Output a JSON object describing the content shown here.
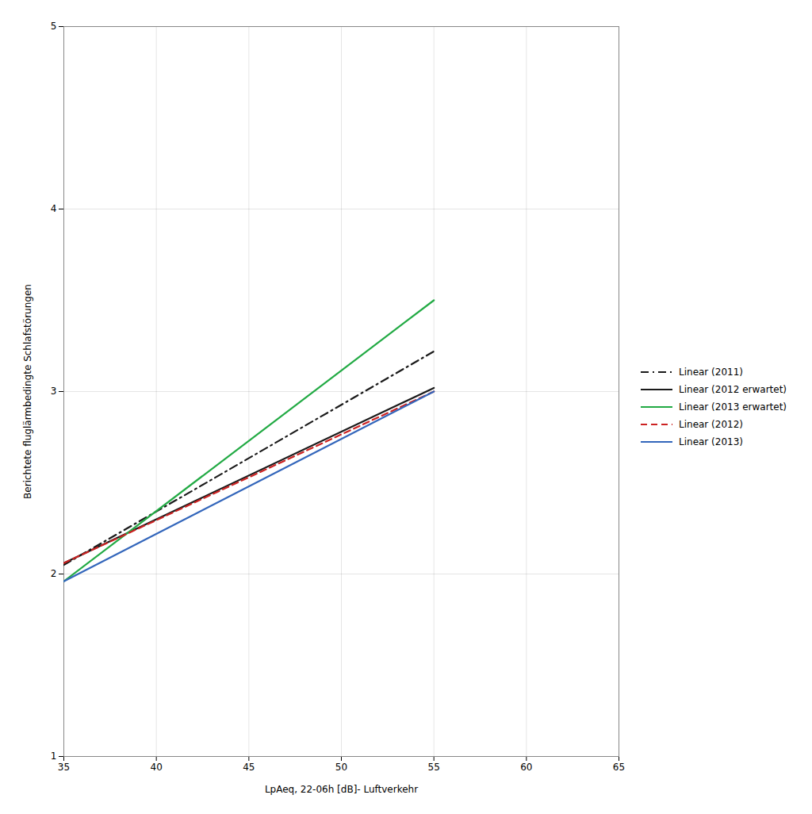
{
  "chart_data": {
    "type": "line",
    "x_label": "LpAeq, 22-06h [dB]- Luftverkehr",
    "y_label": "Berichtete fluglärmbedingte Schlafstörungen",
    "x": [
      35,
      55
    ],
    "series": [
      {
        "name": "Linear (2011)",
        "color": "#1a1a1a",
        "line_style": "dashdot",
        "values": [
          2.05,
          3.22
        ]
      },
      {
        "name": "Linear (2012 erwartet)",
        "color": "#1a1a1a",
        "line_style": "solid",
        "values": [
          2.06,
          3.02
        ]
      },
      {
        "name": "Linear (2013 erwartet)",
        "color": "#22aa44",
        "line_style": "solid",
        "values": [
          1.96,
          3.5
        ]
      },
      {
        "name": "Linear (2012)",
        "color": "#cc2222",
        "line_style": "dashed",
        "values": [
          2.06,
          3.0
        ]
      },
      {
        "name": "Linear (2013)",
        "color": "#3366bb",
        "line_style": "solid",
        "values": [
          1.96,
          3.0
        ]
      }
    ],
    "xlim": [
      35,
      65
    ],
    "ylim": [
      1,
      5
    ],
    "xticks": [
      35,
      40,
      45,
      50,
      55,
      60,
      65
    ],
    "yticks": [
      1,
      2,
      3,
      4,
      5
    ],
    "grid": true,
    "legend": "right"
  }
}
